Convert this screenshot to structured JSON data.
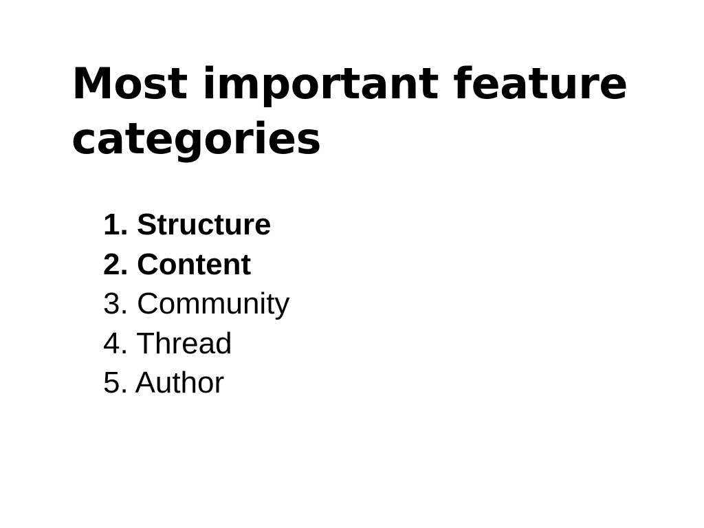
{
  "slide": {
    "title": "Most important feature categories",
    "items": [
      {
        "number": "1.",
        "label": "Structure",
        "bold": true
      },
      {
        "number": "2.",
        "label": "Content",
        "bold": true
      },
      {
        "number": "3.",
        "label": "Community",
        "bold": false
      },
      {
        "number": "4.",
        "label": "Thread",
        "bold": false
      },
      {
        "number": "5.",
        "label": "Author",
        "bold": false
      }
    ]
  }
}
